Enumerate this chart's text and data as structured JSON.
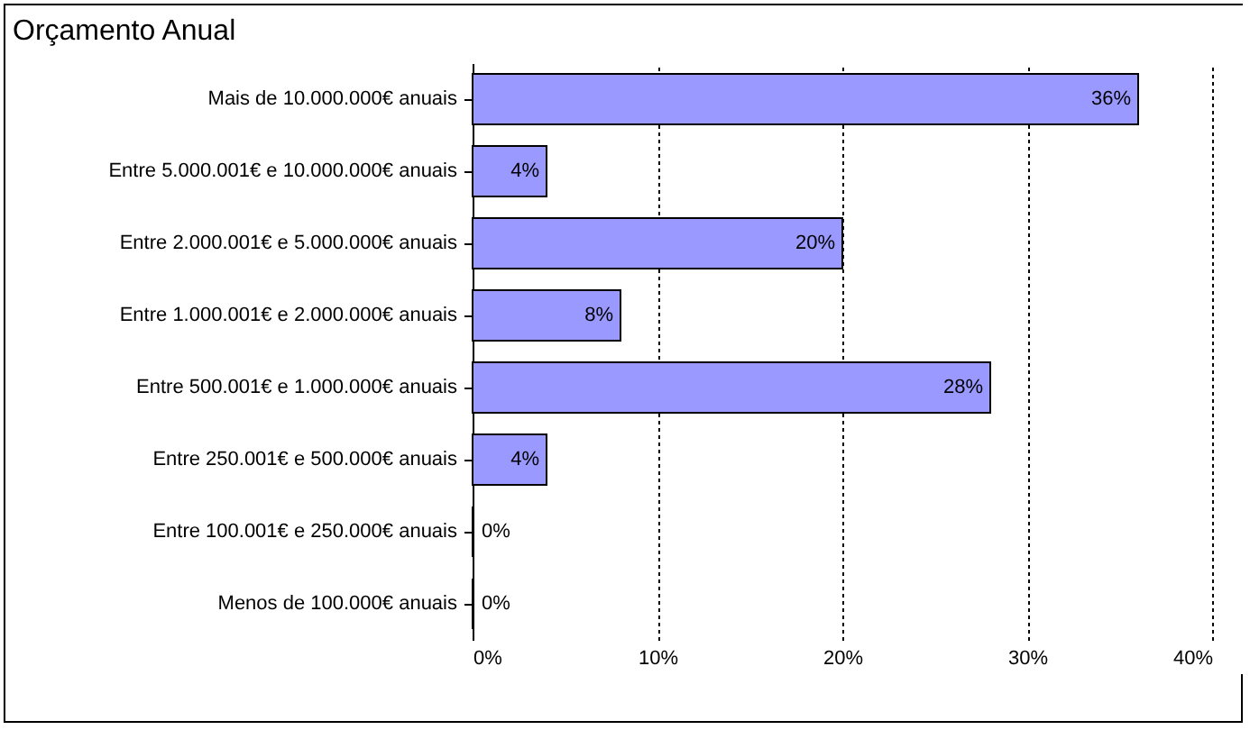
{
  "chart_data": {
    "type": "bar",
    "orientation": "horizontal",
    "title": "Orçamento Anual",
    "categories": [
      "Mais de 10.000.000€ anuais",
      "Entre 5.000.001€ e 10.000.000€ anuais",
      "Entre 2.000.001€ e 5.000.000€ anuais",
      "Entre 1.000.001€ e 2.000.000€ anuais",
      "Entre 500.001€ e 1.000.000€ anuais",
      "Entre 250.001€ e 500.000€ anuais",
      "Entre 100.001€ e 250.000€ anuais",
      "Menos de 100.000€ anuais"
    ],
    "values": [
      36,
      4,
      20,
      8,
      28,
      4,
      0,
      0
    ],
    "value_labels": [
      "36%",
      "4%",
      "20%",
      "8%",
      "28%",
      "4%",
      "0%",
      "0%"
    ],
    "color": "#9999ff",
    "xlim": [
      0,
      40
    ],
    "xticks": [
      {
        "value": 0,
        "label": "0%"
      },
      {
        "value": 10,
        "label": "10%"
      },
      {
        "value": 20,
        "label": "20%"
      },
      {
        "value": 30,
        "label": "30%"
      },
      {
        "value": 40,
        "label": "40%"
      }
    ],
    "grid": "x"
  }
}
